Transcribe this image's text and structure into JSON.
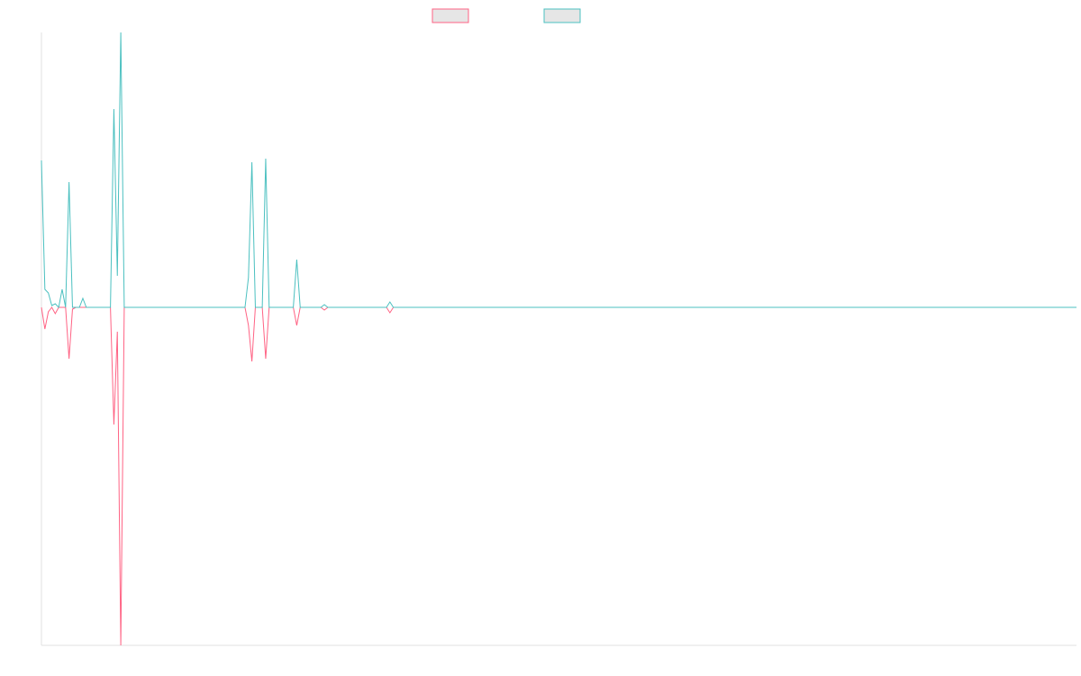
{
  "chart_data": {
    "type": "line",
    "x": [
      0,
      1,
      2,
      3,
      4,
      5,
      6,
      7,
      8,
      9,
      10,
      11,
      12,
      13,
      20,
      21,
      22,
      23,
      24,
      59,
      60,
      61,
      62,
      64,
      65,
      66,
      73,
      74,
      75,
      81,
      82,
      83,
      100,
      101,
      102,
      300
    ],
    "xlim": [
      0,
      300
    ],
    "ylim": [
      -375,
      305
    ],
    "series": [
      {
        "color": "#ff6384",
        "values": [
          0,
          -24,
          -5,
          0,
          -7,
          0,
          0,
          0,
          -57,
          -2,
          0,
          0,
          0,
          0,
          0,
          -130,
          -27,
          -375,
          0,
          0,
          -20,
          -60,
          0,
          0,
          -57,
          0,
          0,
          -20,
          0,
          0,
          -3,
          0,
          0,
          -6,
          0,
          0
        ]
      },
      {
        "color": "#4bc0c0",
        "values": [
          163,
          20,
          16,
          2,
          4,
          0,
          20,
          0,
          139,
          0,
          0,
          0,
          10,
          0,
          0,
          220,
          35,
          305,
          0,
          0,
          33,
          161,
          0,
          0,
          165,
          0,
          0,
          53,
          0,
          0,
          3,
          0,
          0,
          6,
          0,
          0
        ]
      }
    ]
  }
}
